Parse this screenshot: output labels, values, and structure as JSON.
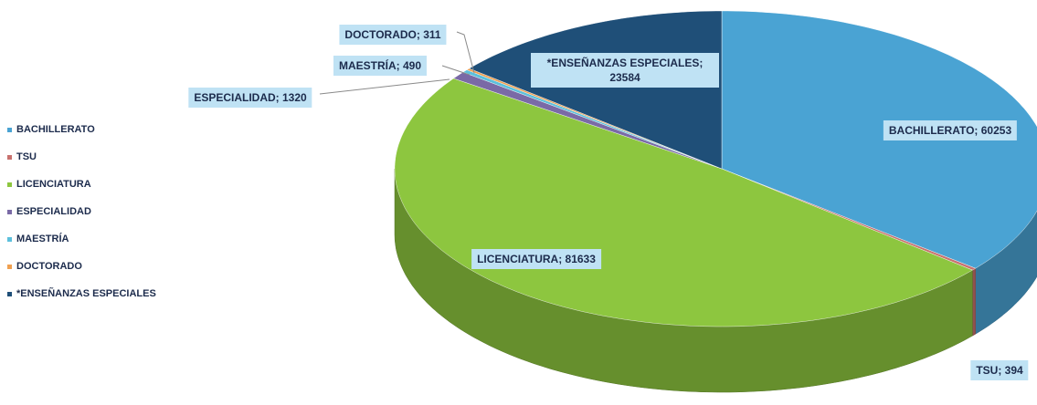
{
  "chart_data": {
    "type": "pie3d",
    "categories": [
      "BACHILLERATO",
      "TSU",
      "LICENCIATURA",
      "ESPECIALIDAD",
      "MAESTRÍA",
      "DOCTORADO",
      "*ENSEÑANZAS ESPECIALES"
    ],
    "values": [
      60253,
      394,
      81633,
      1320,
      490,
      311,
      23584
    ],
    "value_labels": [
      "BACHILLERATO; 60253",
      "TSU; 394",
      "LICENCIATURA; 81633",
      "ESPECIALIDAD; 1320",
      "MAESTRÍA; 490",
      "DOCTORADO; 311",
      "*ENSEÑANZAS ESPECIALES; 23584"
    ],
    "colors": [
      "#4aa3d3",
      "#c8716e",
      "#8dc63f",
      "#7a6aa6",
      "#5cc0dc",
      "#f0a050",
      "#1f4f78"
    ],
    "legend": "left"
  }
}
